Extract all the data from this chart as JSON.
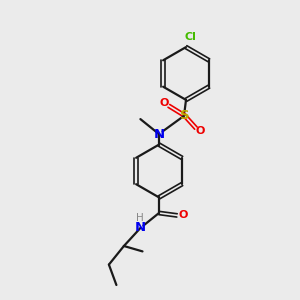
{
  "background_color": "#ebebeb",
  "bond_color": "#1a1a1a",
  "atom_colors": {
    "N": "#0000ee",
    "O": "#ee0000",
    "S": "#bbaa00",
    "Cl": "#44bb00",
    "H": "#888888"
  },
  "figsize": [
    3.0,
    3.0
  ],
  "dpi": 100,
  "xlim": [
    0,
    10
  ],
  "ylim": [
    0,
    10
  ]
}
